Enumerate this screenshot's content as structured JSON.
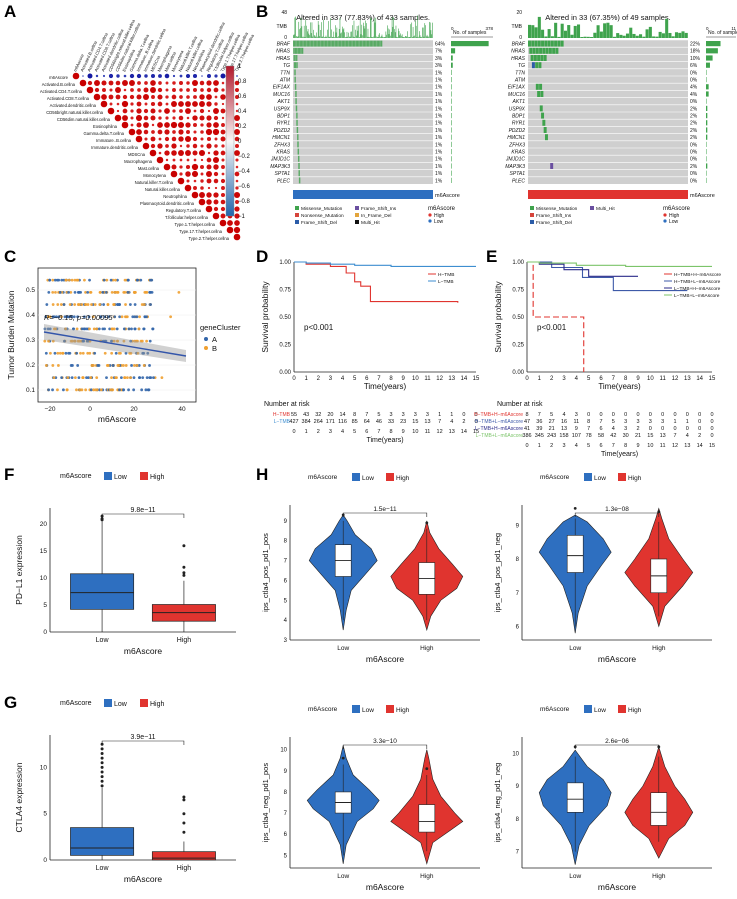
{
  "panels": {
    "A": {
      "label": "A",
      "cells": [
        "m6Ascore",
        "Activated.B.cellna",
        "Activated.CD4.T.cellna",
        "Activated.CD8.T.cellna",
        "Activated.dendritic.cellna",
        "CD56bright.natural.killer.cellna",
        "CD56dim.natural.killer.cellna",
        "Eosinophilna",
        "Gamma.delta.T.cellna",
        "Immature..B.cellna",
        "Immature.dendritic.cellna",
        "MDSCna",
        "Macrophagena",
        "Mast.cellna",
        "Monocytena",
        "Natural.killer.T.cellna",
        "Natural.killer.cellna",
        "Neutrophilna",
        "Plasmacytoid.dendritic.cellna",
        "Regulatory.T.cellna",
        "T.follicular.helper.cellna",
        "Type.1.T.helper.cellna",
        "Type.17.T.helper.cellna",
        "Type.2.T.helper.cellna"
      ],
      "colorbar_ticks": [
        "1",
        "0.8",
        "0.6",
        "0.4",
        "0.2",
        "0",
        "−0.2",
        "−0.4",
        "−0.6",
        "−0.8",
        "−1"
      ]
    },
    "B": {
      "label": "B",
      "left": {
        "title": "Altered in 337 (77.83%) of 433 samples.",
        "tmb_label": "TMB",
        "tmb_max": "48",
        "tmb_min": "0",
        "samples_label": "No. of samples",
        "samples_max": "378",
        "samples_zero": "0",
        "genes": [
          "BRAF",
          "NRAS",
          "HRAS",
          "TG",
          "TTN",
          "ATM",
          "EIF1AX",
          "MUC16",
          "AKT1",
          "USP9X",
          "BDP1",
          "RYR1",
          "PDZD2",
          "HMCN1",
          "ZFHX3",
          "KRAS",
          "JMJD1C",
          "MAP3K3",
          "SPTA1",
          "PLEC"
        ],
        "percents": [
          "64%",
          "7%",
          "3%",
          "3%",
          "1%",
          "1%",
          "1%",
          "1%",
          "1%",
          "1%",
          "1%",
          "1%",
          "1%",
          "1%",
          "1%",
          "1%",
          "1%",
          "1%",
          "1%",
          "1%"
        ],
        "group_label": "m6Ascore",
        "legend_mut": [
          "Missense_Mutation",
          "Nonsense_Mutation",
          "Frame_Shift_Del",
          "Frame_Shift_Ins",
          "In_Frame_Del",
          "Multi_Hit"
        ],
        "legend_title": "m6Ascore",
        "legend_groups": [
          "High",
          "Low"
        ]
      },
      "right": {
        "title": "Altered in 33 (67.35%) of 49 samples.",
        "tmb_label": "TMB",
        "tmb_max": "20",
        "tmb_min": "0",
        "samples_label": "No. of samples",
        "samples_max": "11",
        "samples_zero": "0",
        "genes": [
          "BRAF",
          "NRAS",
          "HRAS",
          "TG",
          "TTN",
          "ATM",
          "EIF1AX",
          "MUC16",
          "AKT1",
          "USP9X",
          "BDP1",
          "RYR1",
          "PDZD2",
          "HMCN1",
          "ZFHX3",
          "KRAS",
          "JMJD1C",
          "MAP3K3",
          "SPTA1",
          "PLEC"
        ],
        "percents": [
          "22%",
          "18%",
          "10%",
          "6%",
          "0%",
          "0%",
          "4%",
          "4%",
          "0%",
          "2%",
          "2%",
          "2%",
          "2%",
          "2%",
          "0%",
          "0%",
          "0%",
          "2%",
          "0%",
          "0%"
        ],
        "group_label": "m6Ascore",
        "legend_mut": [
          "Missense_Mutation",
          "Frame_Shift_Ins",
          "Frame_Shift_Del",
          "Multi_Hit"
        ],
        "legend_title": "m6Ascore",
        "legend_groups": [
          "High",
          "Low"
        ]
      }
    },
    "C": {
      "label": "C",
      "ylabel": "Tumor Burden Mutation",
      "xlabel": "m6Ascore",
      "annotation": "R=−0.15, p=0.00095",
      "xticks": [
        "−20",
        "0",
        "20",
        "40"
      ],
      "yticks": [
        "0.1",
        "0.2",
        "0.3",
        "0.4",
        "0.5"
      ],
      "legend_title": "geneCluster",
      "legend_items": [
        "A",
        "B"
      ]
    },
    "D": {
      "label": "D",
      "ylabel": "Survival probability",
      "xlabel": "Time(years)",
      "pvalue": "p<0.001",
      "legend": [
        "H−TMB",
        "L−TMB"
      ],
      "yticks": [
        "0.00",
        "0.25",
        "0.50",
        "0.75",
        "1.00"
      ],
      "xticks": [
        "0",
        "1",
        "2",
        "3",
        "4",
        "5",
        "6",
        "7",
        "8",
        "9",
        "10",
        "11",
        "12",
        "13",
        "14",
        "15"
      ],
      "risk_title": "Number at risk",
      "risk_rows": [
        {
          "name": "H−TMB",
          "values": [
            "55",
            "43",
            "32",
            "20",
            "14",
            "8",
            "7",
            "5",
            "3",
            "3",
            "3",
            "3",
            "1",
            "1",
            "0",
            "0"
          ]
        },
        {
          "name": "L−TMB",
          "values": [
            "427",
            "384",
            "264",
            "171",
            "116",
            "85",
            "64",
            "46",
            "33",
            "23",
            "15",
            "13",
            "7",
            "4",
            "2",
            "0"
          ]
        }
      ]
    },
    "E": {
      "label": "E",
      "ylabel": "Survival probability",
      "xlabel": "Time(years)",
      "pvalue": "p<0.001",
      "legend": [
        "H−TMB+H−m6Ascore",
        "H−TMB+L−m6Ascore",
        "L−TMB+H−m6Ascore",
        "L−TMB+L−m6Ascore"
      ],
      "yticks": [
        "0.00",
        "0.25",
        "0.50",
        "0.75",
        "1.00"
      ],
      "xticks": [
        "0",
        "1",
        "2",
        "3",
        "4",
        "5",
        "6",
        "7",
        "8",
        "9",
        "10",
        "11",
        "12",
        "13",
        "14",
        "15"
      ],
      "risk_title": "Number at risk",
      "risk_rows": [
        {
          "name": "H−TMB+H−m6Ascore",
          "values": [
            "8",
            "7",
            "5",
            "4",
            "3",
            "0",
            "0",
            "0",
            "0",
            "0",
            "0",
            "0",
            "0",
            "0",
            "0",
            "0"
          ]
        },
        {
          "name": "H−TMB+L−m6Ascore",
          "values": [
            "47",
            "36",
            "27",
            "16",
            "11",
            "8",
            "7",
            "5",
            "3",
            "3",
            "3",
            "3",
            "1",
            "1",
            "0",
            "0"
          ]
        },
        {
          "name": "L−TMB+H−m6Ascore",
          "values": [
            "41",
            "39",
            "21",
            "13",
            "9",
            "7",
            "6",
            "4",
            "3",
            "2",
            "0",
            "0",
            "0",
            "0",
            "0",
            "0"
          ]
        },
        {
          "name": "L−TMB+L−m6Ascore",
          "values": [
            "386",
            "345",
            "243",
            "158",
            "107",
            "78",
            "58",
            "42",
            "30",
            "21",
            "15",
            "13",
            "7",
            "4",
            "2",
            "0"
          ]
        }
      ]
    },
    "F": {
      "label": "F",
      "legend_title": "m6Ascore",
      "legend_items": [
        "Low",
        "High"
      ],
      "pvalue": "9.8e−11",
      "ylabel": "PD−L1 expression",
      "xlabel": "m6Ascore",
      "categories": [
        "Low",
        "High"
      ],
      "yticks": [
        "0",
        "5",
        "10",
        "15",
        "20"
      ]
    },
    "G": {
      "label": "G",
      "legend_title": "m6Ascore",
      "legend_items": [
        "Low",
        "High"
      ],
      "pvalue": "3.9e−11",
      "ylabel": "CTLA4 expression",
      "xlabel": "m6Ascore",
      "categories": [
        "Low",
        "High"
      ],
      "yticks": [
        "0",
        "5",
        "10"
      ]
    },
    "H": {
      "label": "H",
      "plots": [
        {
          "legend_title": "m6Ascore",
          "legend_items": [
            "Low",
            "High"
          ],
          "pvalue": "1.5e−11",
          "ylabel": "ips_ctla4_pos_pd1_pos",
          "xlabel": "m6Ascore",
          "categories": [
            "Low",
            "High"
          ],
          "yticks": [
            "3",
            "4",
            "5",
            "6",
            "7",
            "8",
            "9"
          ]
        },
        {
          "legend_title": "m6Ascore",
          "legend_items": [
            "Low",
            "High"
          ],
          "pvalue": "1.3e−08",
          "ylabel": "ips_ctla4_pos_pd1_neg",
          "xlabel": "m6Ascore",
          "categories": [
            "Low",
            "High"
          ],
          "yticks": [
            "6",
            "7",
            "8",
            "9"
          ]
        },
        {
          "legend_title": "m6Ascore",
          "legend_items": [
            "Low",
            "High"
          ],
          "pvalue": "3.3e−10",
          "ylabel": "ips_ctla4_neg_pd1_pos",
          "xlabel": "m6Ascore",
          "categories": [
            "Low",
            "High"
          ],
          "yticks": [
            "5",
            "6",
            "7",
            "8",
            "9",
            "10"
          ]
        },
        {
          "legend_title": "m6Ascore",
          "legend_items": [
            "Low",
            "High"
          ],
          "pvalue": "2.6e−06",
          "ylabel": "ips_ctla4_neg_pd1_neg",
          "xlabel": "m6Ascore",
          "categories": [
            "Low",
            "High"
          ],
          "yticks": [
            "7",
            "8",
            "9",
            "10"
          ]
        }
      ]
    }
  },
  "colors": {
    "low_blue": "#2e6fc0",
    "high_red": "#e0342f",
    "mut_green": "#3fa34d",
    "grid_gray": "#cfcfcf",
    "tmb_low_line": "#3e8ed0",
    "tmb_high_line": "#e0342f",
    "orange": "#f0a030"
  }
}
